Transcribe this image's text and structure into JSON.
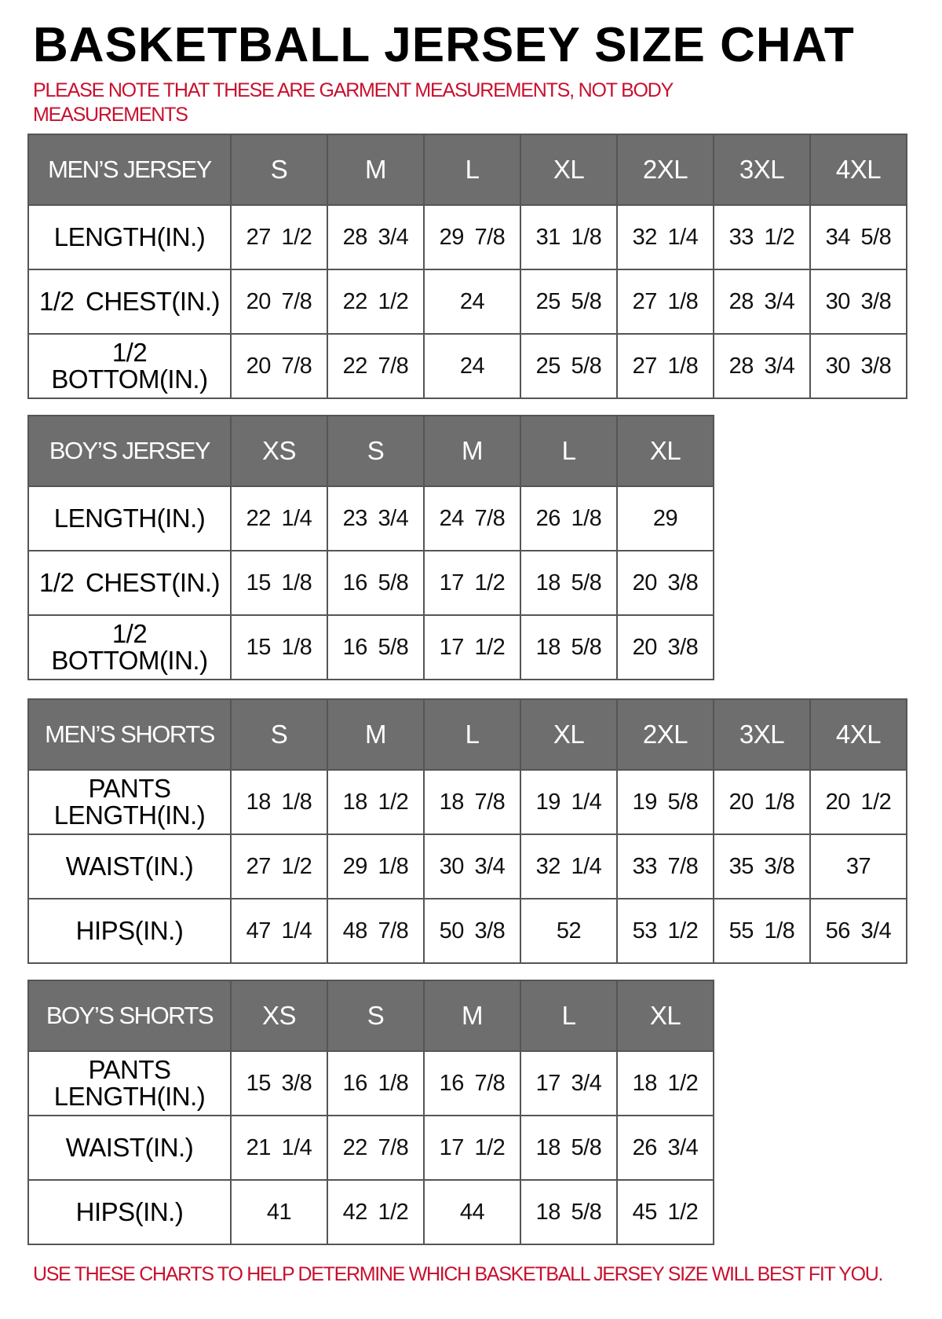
{
  "title": "BASKETBALL JERSEY SIZE CHAT",
  "note": "PLEASE NOTE THAT THESE ARE GARMENT MEASUREMENTS, NOT BODY MEASUREMENTS",
  "footer": "USE THESE CHARTS TO HELP DETERMINE WHICH BASKETBALL JERSEY SIZE WILL BEST FIT YOU.",
  "colors": {
    "header_bg": "#6e6e6e",
    "note_red": "#c8102e"
  },
  "tables": [
    {
      "name": "MEN’S JERSEY",
      "sizes": [
        "S",
        "M",
        "L",
        "XL",
        "2XL",
        "3XL",
        "4XL"
      ],
      "rows": [
        {
          "label": "LENGTH(IN.)",
          "values": [
            "27 1/2",
            "28 3/4",
            "29 7/8",
            "31 1/8",
            "32 1/4",
            "33 1/2",
            "34 5/8"
          ]
        },
        {
          "label": "1/2 CHEST(IN.)",
          "values": [
            "20 7/8",
            "22 1/2",
            "24",
            "25 5/8",
            "27 1/8",
            "28 3/4",
            "30 3/8"
          ]
        },
        {
          "label": "1/2 BOTTOM(IN.)",
          "values": [
            "20 7/8",
            "22 7/8",
            "24",
            "25 5/8",
            "27 1/8",
            "28 3/4",
            "30 3/8"
          ]
        }
      ]
    },
    {
      "name": "BOY’S JERSEY",
      "sizes": [
        "XS",
        "S",
        "M",
        "L",
        "XL"
      ],
      "rows": [
        {
          "label": "LENGTH(IN.)",
          "values": [
            "22 1/4",
            "23 3/4",
            "24 7/8",
            "26 1/8",
            "29"
          ]
        },
        {
          "label": "1/2 CHEST(IN.)",
          "values": [
            "15 1/8",
            "16 5/8",
            "17 1/2",
            "18 5/8",
            "20 3/8"
          ]
        },
        {
          "label": "1/2 BOTTOM(IN.)",
          "values": [
            "15 1/8",
            "16 5/8",
            "17 1/2",
            "18 5/8",
            "20 3/8"
          ]
        }
      ]
    },
    {
      "name": "MEN’S SHORTS",
      "sizes": [
        "S",
        "M",
        "L",
        "XL",
        "2XL",
        "3XL",
        "4XL"
      ],
      "rows": [
        {
          "label": "PANTS LENGTH(IN.)",
          "values": [
            "18 1/8",
            "18 1/2",
            "18 7/8",
            "19 1/4",
            "19 5/8",
            "20 1/8",
            "20 1/2"
          ]
        },
        {
          "label": "WAIST(IN.)",
          "values": [
            "27 1/2",
            "29 1/8",
            "30 3/4",
            "32 1/4",
            "33 7/8",
            "35 3/8",
            "37"
          ]
        },
        {
          "label": "HIPS(IN.)",
          "values": [
            "47 1/4",
            "48 7/8",
            "50 3/8",
            "52",
            "53 1/2",
            "55 1/8",
            "56 3/4"
          ]
        }
      ]
    },
    {
      "name": "BOY’S SHORTS",
      "sizes": [
        "XS",
        "S",
        "M",
        "L",
        "XL"
      ],
      "rows": [
        {
          "label": "PANTS LENGTH(IN.)",
          "values": [
            "15 3/8",
            "16 1/8",
            "16 7/8",
            "17 3/4",
            "18 1/2"
          ]
        },
        {
          "label": "WAIST(IN.)",
          "values": [
            "21 1/4",
            "22 7/8",
            "17 1/2",
            "18 5/8",
            "26 3/4"
          ]
        },
        {
          "label": "HIPS(IN.)",
          "values": [
            "41",
            "42 1/2",
            "44",
            "18 5/8",
            "45 1/2"
          ]
        }
      ]
    }
  ]
}
